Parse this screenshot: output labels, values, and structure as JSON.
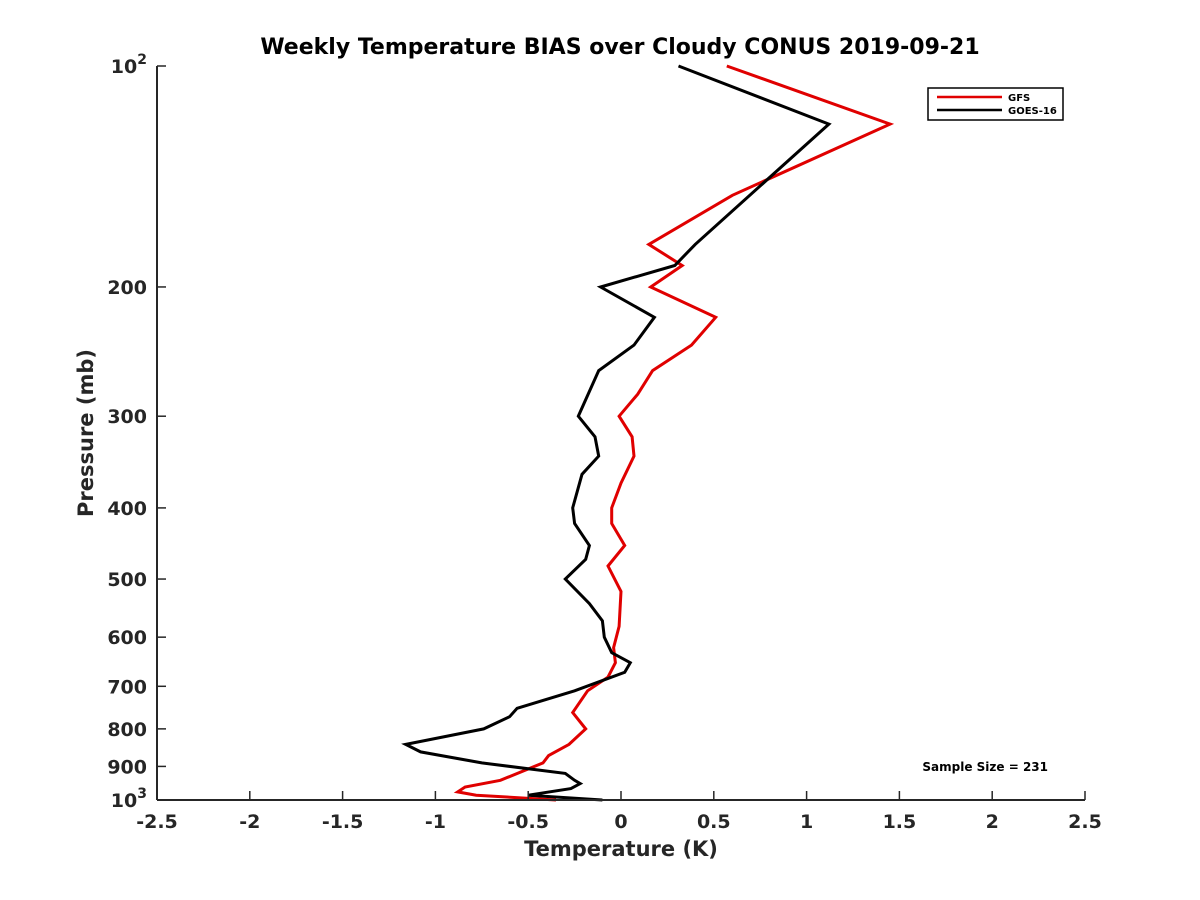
{
  "chart_data": {
    "type": "line",
    "title": "Weekly Temperature BIAS over Cloudy CONUS 2019-09-21",
    "xlabel": "Temperature (K)",
    "ylabel": "Pressure (mb)",
    "xlim": [
      -2.5,
      2.5
    ],
    "ylim": [
      100,
      1000
    ],
    "y_scale": "log",
    "y_direction": "reversed",
    "x_ticks": [
      -2.5,
      -2,
      -1.5,
      -1,
      -0.5,
      0,
      0.5,
      1,
      1.5,
      2,
      2.5
    ],
    "x_tick_labels": [
      "-2.5",
      "-2",
      "-1.5",
      "-1",
      "-0.5",
      "0",
      "0.5",
      "1",
      "1.5",
      "2",
      "2.5"
    ],
    "y_ticks": [
      100,
      200,
      300,
      400,
      500,
      600,
      700,
      800,
      900,
      1000
    ],
    "y_tick_labels": [
      "10^2",
      "200",
      "300",
      "400",
      "500",
      "600",
      "700",
      "800",
      "900",
      "10^3"
    ],
    "grid": false,
    "legend_position": "top-right",
    "annotation": "Sample Size = 231",
    "series": [
      {
        "name": "GFS",
        "color": "#e00000",
        "points": [
          {
            "x": 0.57,
            "y": 100
          },
          {
            "x": 1.45,
            "y": 120
          },
          {
            "x": 0.6,
            "y": 150
          },
          {
            "x": 0.15,
            "y": 175
          },
          {
            "x": 0.33,
            "y": 187
          },
          {
            "x": 0.16,
            "y": 200
          },
          {
            "x": 0.51,
            "y": 220
          },
          {
            "x": 0.38,
            "y": 240
          },
          {
            "x": 0.17,
            "y": 260
          },
          {
            "x": 0.09,
            "y": 280
          },
          {
            "x": -0.01,
            "y": 300
          },
          {
            "x": 0.06,
            "y": 320
          },
          {
            "x": 0.07,
            "y": 340
          },
          {
            "x": 0.0,
            "y": 370
          },
          {
            "x": -0.05,
            "y": 400
          },
          {
            "x": -0.05,
            "y": 420
          },
          {
            "x": 0.02,
            "y": 450
          },
          {
            "x": -0.07,
            "y": 480
          },
          {
            "x": 0.0,
            "y": 520
          },
          {
            "x": -0.01,
            "y": 580
          },
          {
            "x": -0.04,
            "y": 620
          },
          {
            "x": -0.03,
            "y": 650
          },
          {
            "x": -0.07,
            "y": 680
          },
          {
            "x": -0.18,
            "y": 710
          },
          {
            "x": -0.26,
            "y": 760
          },
          {
            "x": -0.19,
            "y": 800
          },
          {
            "x": -0.28,
            "y": 840
          },
          {
            "x": -0.39,
            "y": 870
          },
          {
            "x": -0.42,
            "y": 890
          },
          {
            "x": -0.65,
            "y": 940
          },
          {
            "x": -0.84,
            "y": 960
          },
          {
            "x": -0.88,
            "y": 975
          },
          {
            "x": -0.78,
            "y": 985
          },
          {
            "x": -0.35,
            "y": 1000
          }
        ]
      },
      {
        "name": "GOES-16",
        "color": "#000000",
        "points": [
          {
            "x": 0.31,
            "y": 100
          },
          {
            "x": 1.12,
            "y": 120
          },
          {
            "x": 0.4,
            "y": 175
          },
          {
            "x": 0.29,
            "y": 187
          },
          {
            "x": -0.11,
            "y": 200
          },
          {
            "x": 0.18,
            "y": 220
          },
          {
            "x": 0.07,
            "y": 240
          },
          {
            "x": -0.12,
            "y": 260
          },
          {
            "x": -0.23,
            "y": 300
          },
          {
            "x": -0.14,
            "y": 320
          },
          {
            "x": -0.12,
            "y": 340
          },
          {
            "x": -0.21,
            "y": 360
          },
          {
            "x": -0.26,
            "y": 400
          },
          {
            "x": -0.25,
            "y": 420
          },
          {
            "x": -0.17,
            "y": 450
          },
          {
            "x": -0.19,
            "y": 470
          },
          {
            "x": -0.3,
            "y": 500
          },
          {
            "x": -0.17,
            "y": 540
          },
          {
            "x": -0.1,
            "y": 570
          },
          {
            "x": -0.09,
            "y": 600
          },
          {
            "x": -0.05,
            "y": 630
          },
          {
            "x": 0.05,
            "y": 650
          },
          {
            "x": 0.02,
            "y": 670
          },
          {
            "x": -0.25,
            "y": 710
          },
          {
            "x": -0.56,
            "y": 750
          },
          {
            "x": -0.6,
            "y": 770
          },
          {
            "x": -0.74,
            "y": 800
          },
          {
            "x": -1.16,
            "y": 840
          },
          {
            "x": -1.08,
            "y": 860
          },
          {
            "x": -0.75,
            "y": 890
          },
          {
            "x": -0.3,
            "y": 920
          },
          {
            "x": -0.25,
            "y": 940
          },
          {
            "x": -0.22,
            "y": 950
          },
          {
            "x": -0.27,
            "y": 965
          },
          {
            "x": -0.5,
            "y": 985
          },
          {
            "x": -0.1,
            "y": 1000
          }
        ]
      }
    ]
  }
}
